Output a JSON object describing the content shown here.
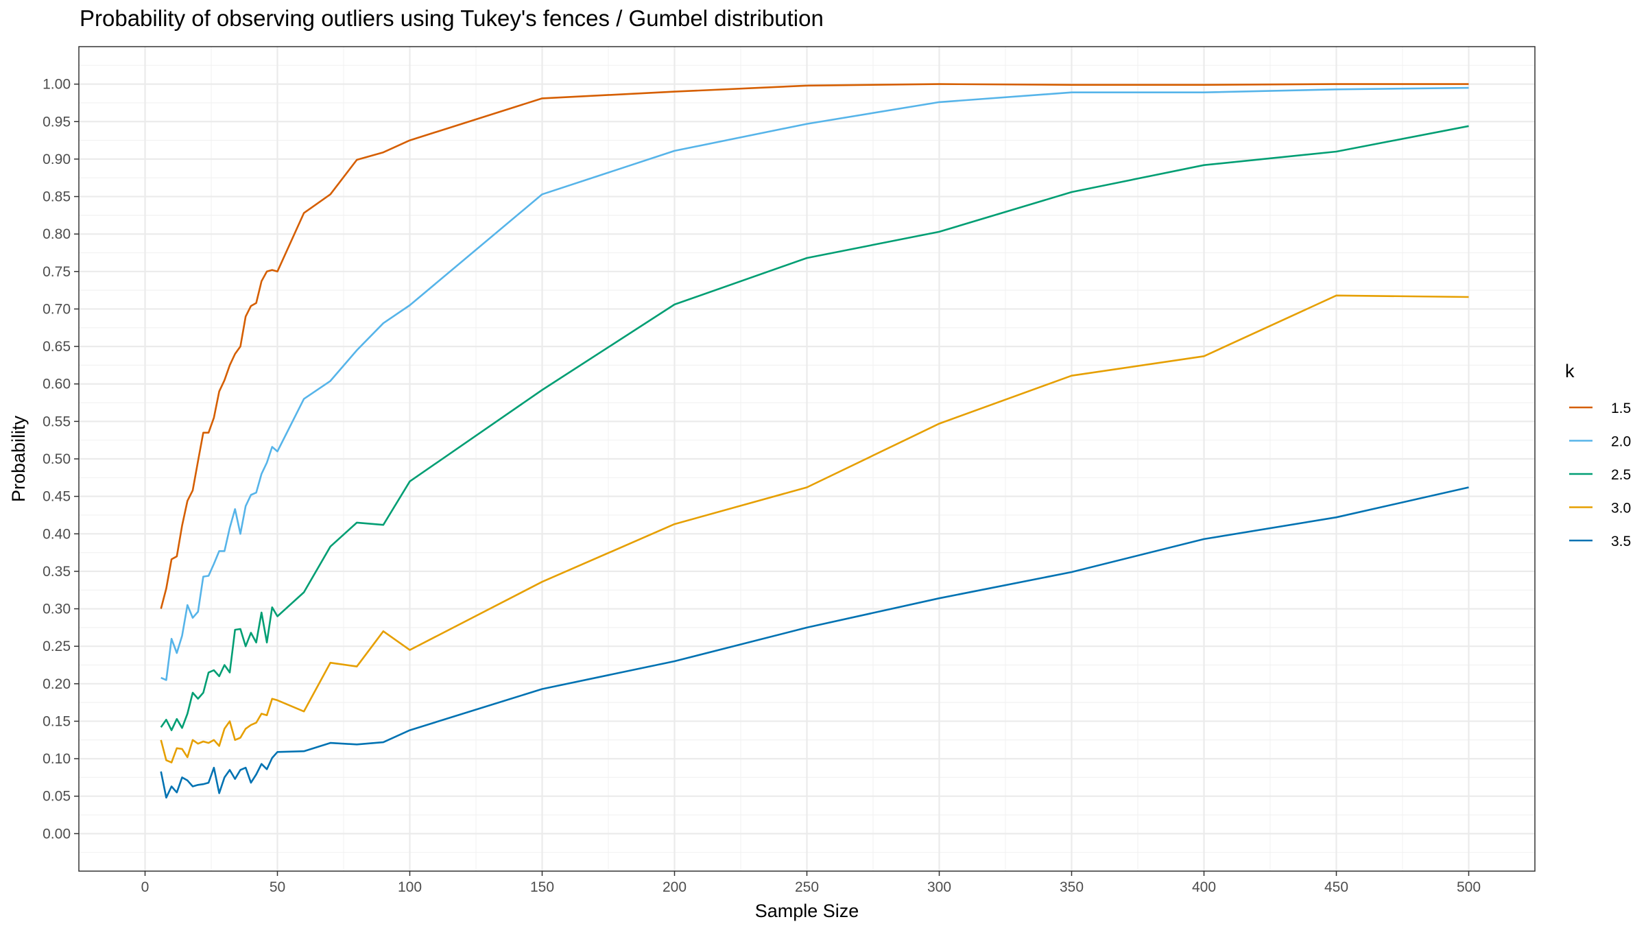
{
  "chart_data": {
    "type": "line",
    "title": "Probability of observing outliers using Tukey's fences / Gumbel distribution",
    "xlabel": "Sample Size",
    "ylabel": "Probability",
    "xlim": [
      -25,
      525
    ],
    "ylim": [
      -0.05,
      1.05
    ],
    "x_ticks": [
      0,
      50,
      100,
      150,
      200,
      250,
      300,
      350,
      400,
      450,
      500
    ],
    "x_tick_labels": [
      "0",
      "50",
      "100",
      "150",
      "200",
      "250",
      "300",
      "350",
      "400",
      "450",
      "500"
    ],
    "y_ticks": [
      0,
      0.05,
      0.1,
      0.15,
      0.2,
      0.25,
      0.3,
      0.35,
      0.4,
      0.45,
      0.5,
      0.55,
      0.6,
      0.65,
      0.7,
      0.75,
      0.8,
      0.85,
      0.9,
      0.95,
      1.0
    ],
    "y_tick_labels": [
      "0.00",
      "0.05",
      "0.10",
      "0.15",
      "0.20",
      "0.25",
      "0.30",
      "0.35",
      "0.40",
      "0.45",
      "0.50",
      "0.55",
      "0.60",
      "0.65",
      "0.70",
      "0.75",
      "0.80",
      "0.85",
      "0.90",
      "0.95",
      "1.00"
    ],
    "grid": true,
    "legend_title": "k",
    "legend_position": "right",
    "x": [
      6,
      8,
      10,
      12,
      14,
      16,
      18,
      20,
      22,
      24,
      26,
      28,
      30,
      32,
      34,
      36,
      38,
      40,
      42,
      44,
      46,
      48,
      50,
      60,
      70,
      80,
      90,
      100,
      150,
      200,
      250,
      300,
      350,
      400,
      450,
      500
    ],
    "series": [
      {
        "name": "1.5",
        "color": "#D55E00",
        "values": [
          0.3,
          0.327,
          0.366,
          0.37,
          0.411,
          0.444,
          0.458,
          0.497,
          0.535,
          0.535,
          0.555,
          0.59,
          0.605,
          0.625,
          0.64,
          0.65,
          0.69,
          0.704,
          0.708,
          0.737,
          0.75,
          0.752,
          0.75,
          0.828,
          0.853,
          0.899,
          0.909,
          0.925,
          0.981,
          0.99,
          0.998,
          1.0,
          0.999,
          0.999,
          1.0,
          1.0
        ]
      },
      {
        "name": "2.0",
        "color": "#56B4E9",
        "values": [
          0.208,
          0.205,
          0.26,
          0.241,
          0.264,
          0.305,
          0.288,
          0.296,
          0.343,
          0.344,
          0.36,
          0.377,
          0.377,
          0.408,
          0.433,
          0.4,
          0.437,
          0.452,
          0.455,
          0.48,
          0.495,
          0.516,
          0.51,
          0.58,
          0.604,
          0.645,
          0.681,
          0.705,
          0.853,
          0.911,
          0.947,
          0.976,
          0.989,
          0.989,
          0.993,
          0.995
        ]
      },
      {
        "name": "2.5",
        "color": "#009E73",
        "values": [
          0.142,
          0.152,
          0.138,
          0.153,
          0.141,
          0.16,
          0.188,
          0.18,
          0.188,
          0.215,
          0.218,
          0.21,
          0.225,
          0.215,
          0.272,
          0.273,
          0.25,
          0.268,
          0.255,
          0.295,
          0.255,
          0.302,
          0.29,
          0.322,
          0.383,
          0.415,
          0.412,
          0.47,
          0.592,
          0.706,
          0.768,
          0.803,
          0.856,
          0.892,
          0.91,
          0.944
        ]
      },
      {
        "name": "3.0",
        "color": "#E69F00",
        "values": [
          0.125,
          0.098,
          0.095,
          0.114,
          0.113,
          0.102,
          0.125,
          0.12,
          0.123,
          0.121,
          0.125,
          0.117,
          0.14,
          0.15,
          0.125,
          0.128,
          0.14,
          0.145,
          0.148,
          0.16,
          0.158,
          0.18,
          0.178,
          0.163,
          0.228,
          0.223,
          0.27,
          0.245,
          0.336,
          0.413,
          0.462,
          0.547,
          0.611,
          0.637,
          0.718,
          0.716
        ]
      },
      {
        "name": "3.5",
        "color": "#0072B2",
        "values": [
          0.083,
          0.048,
          0.063,
          0.055,
          0.075,
          0.071,
          0.063,
          0.065,
          0.066,
          0.068,
          0.088,
          0.054,
          0.075,
          0.085,
          0.073,
          0.085,
          0.088,
          0.068,
          0.079,
          0.093,
          0.086,
          0.101,
          0.109,
          0.11,
          0.121,
          0.119,
          0.122,
          0.138,
          0.193,
          0.23,
          0.275,
          0.314,
          0.349,
          0.393,
          0.422,
          0.462
        ]
      }
    ]
  }
}
